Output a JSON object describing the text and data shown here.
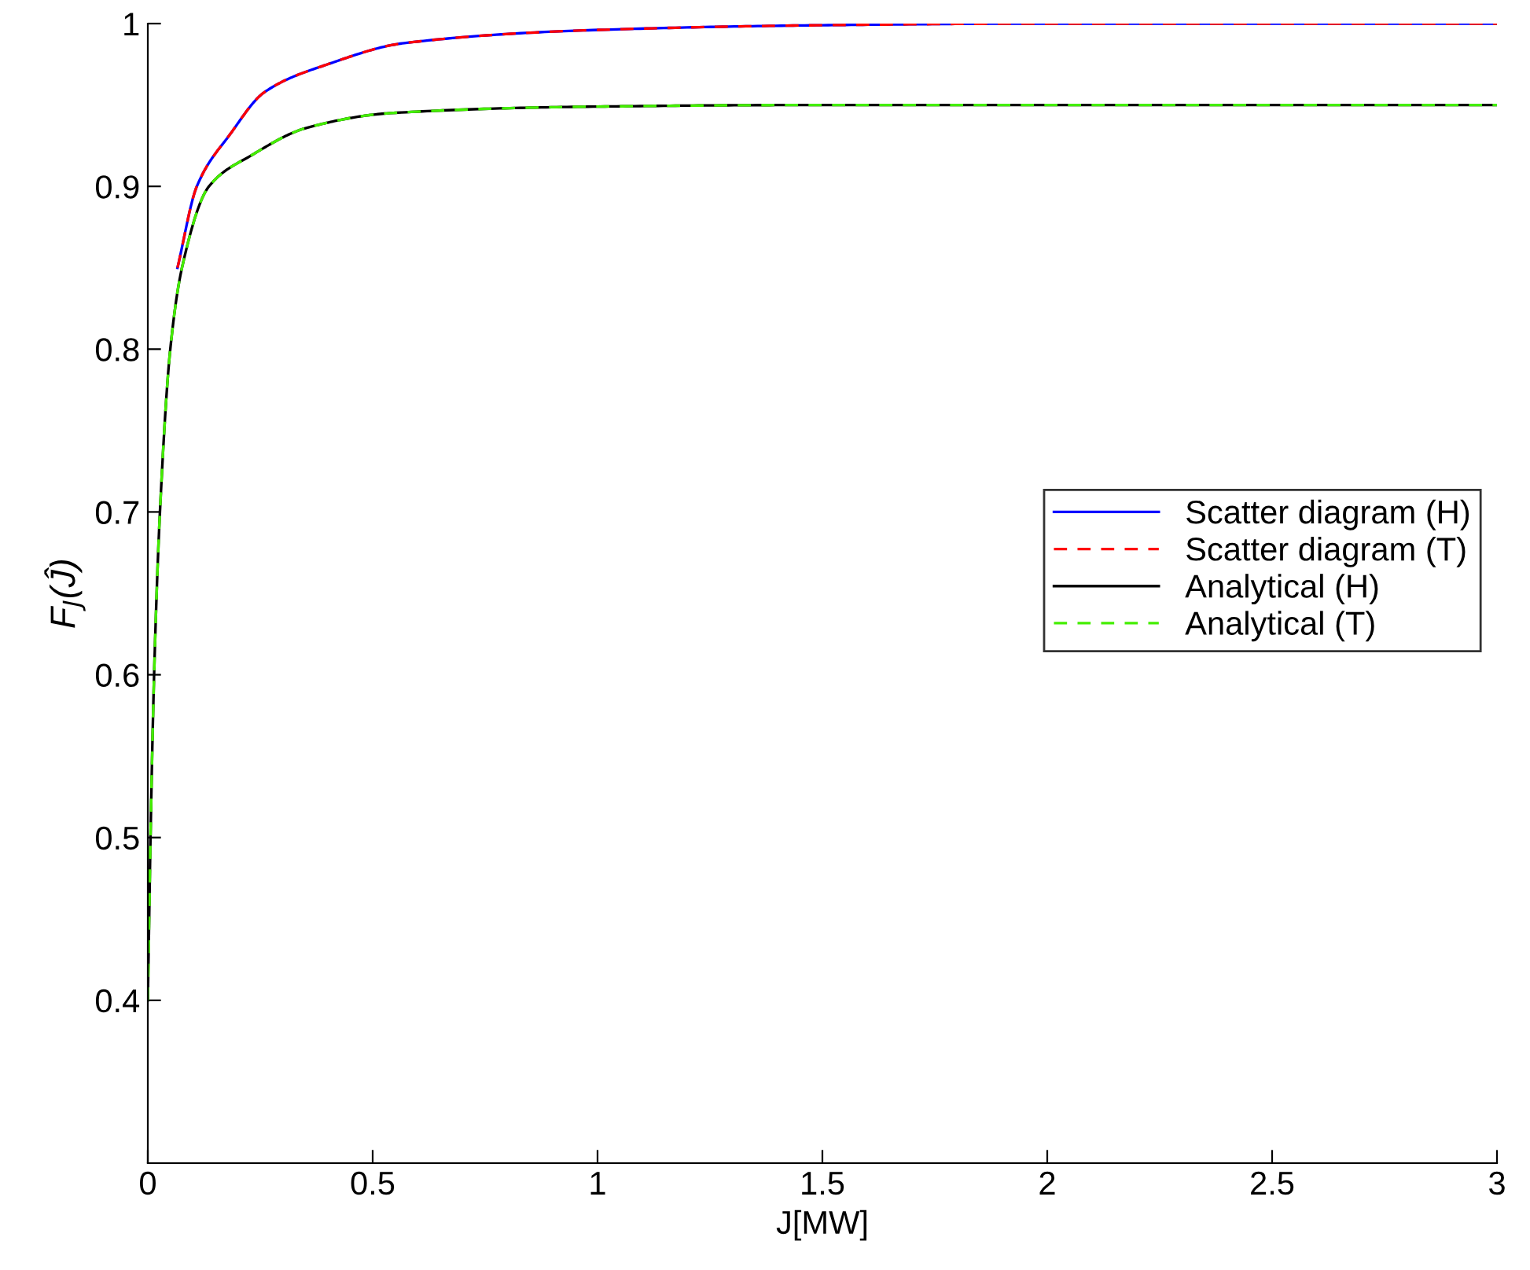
{
  "chart_data": {
    "type": "line",
    "xlabel": "J[MW]",
    "ylabel": "F$_{J}$(Ĵ)",
    "xlim": [
      0,
      3
    ],
    "ylim": [
      0.3,
      1
    ],
    "xticks": [
      0,
      0.5,
      1,
      1.5,
      2,
      2.5,
      3
    ],
    "yticks": [
      0.4,
      0.5,
      0.6,
      0.7,
      0.8,
      0.9,
      1
    ],
    "grid": false,
    "legend": "right",
    "marker": "none",
    "series": [
      {
        "name": "Scatter diagram (H)",
        "color": "#0000ff",
        "line_style": "solid",
        "x": [
          0.066,
          0.109,
          0.183,
          0.26,
          0.4,
          0.57,
          0.99,
          1.5,
          2,
          3
        ],
        "values": [
          0.85,
          0.9,
          0.932,
          0.958,
          0.975,
          0.988,
          0.996,
          0.999,
          1,
          1
        ]
      },
      {
        "name": "Scatter diagram (T)",
        "color": "#ff0000",
        "line_style": "dashed",
        "x": [
          0.066,
          0.109,
          0.183,
          0.26,
          0.4,
          0.57,
          0.99,
          1.5,
          2,
          3
        ],
        "values": [
          0.85,
          0.9,
          0.932,
          0.958,
          0.975,
          0.988,
          0.996,
          0.999,
          1,
          1
        ]
      },
      {
        "name": "Analytical (H)",
        "color": "#000000",
        "line_style": "solid",
        "x": [
          0,
          0.003,
          0.006,
          0.014,
          0.027,
          0.05,
          0.076,
          0.136,
          0.23,
          0.354,
          0.54,
          0.99,
          1.5,
          3
        ],
        "values": [
          0.4,
          0.45,
          0.5,
          0.6,
          0.7,
          0.8,
          0.85,
          0.9,
          0.919,
          0.936,
          0.945,
          0.949,
          0.95,
          0.95
        ]
      },
      {
        "name": "Analytical (T)",
        "color": "#44ee00",
        "line_style": "dashed",
        "x": [
          0,
          0.003,
          0.006,
          0.014,
          0.027,
          0.05,
          0.076,
          0.136,
          0.23,
          0.354,
          0.54,
          0.99,
          1.5,
          3
        ],
        "values": [
          0.4,
          0.45,
          0.5,
          0.6,
          0.7,
          0.8,
          0.85,
          0.9,
          0.919,
          0.936,
          0.945,
          0.949,
          0.95,
          0.95
        ]
      }
    ]
  }
}
